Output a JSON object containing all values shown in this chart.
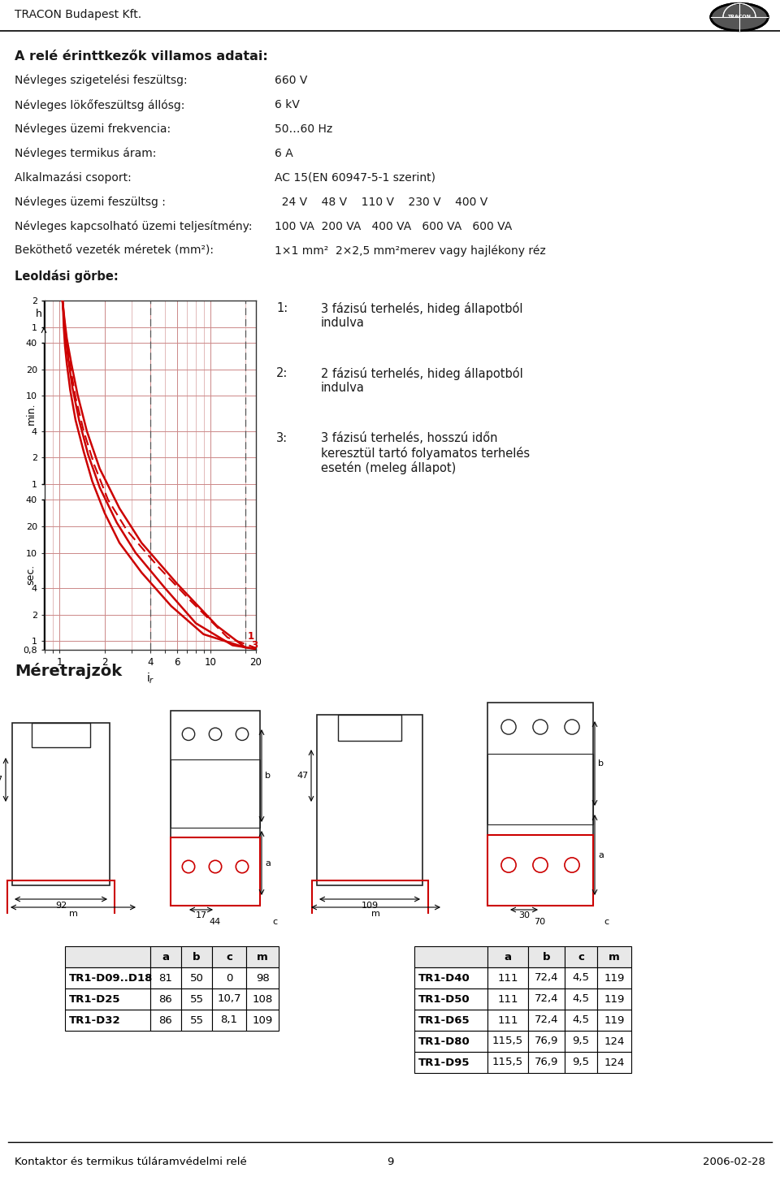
{
  "title_company": "TRACON Budapest Kft.",
  "section1_title": "A relé érinttkezők villamos adatai:",
  "params": [
    [
      "Névleges szigetelési feszültsg:",
      "660 V"
    ],
    [
      "Névleges lökőfeszültsg állósg:",
      "6 kV"
    ],
    [
      "Névleges üzemi frekvencia:",
      "50…60 Hz"
    ],
    [
      "Névleges termikus áram:",
      "6 A"
    ],
    [
      "Alkalmazási csoport:",
      "AC 15(EN 60947-5-1 szerint)"
    ],
    [
      "Névleges üzemi feszültsg :",
      "  24 V    48 V    110 V    230 V    400 V"
    ],
    [
      "Névleges kapcsolható üzemi teljesítmény:",
      "100 VA  200 VA   400 VA   600 VA   600 VA"
    ],
    [
      "Beköthető vezeték méretek (mm²):",
      "1×1 mm²  2×2,5 mm²merev vagy hajlékony réz"
    ]
  ],
  "leoldasi_label": "Leoldási görbe:",
  "curve1_label": "1:    3 fázisú terhelés, hideg állapotból\n        indulva",
  "curve2_label": "2:    2 fázisú terhelés, hideg állapotból\n        indulva",
  "curve3_label": "3:    3 fázisú terhelés, hosszú időn\n        keresztül tartó folyamatos terhelés\n        esetn (meleg állapot)",
  "meretrajzok_title": "Méretrajzok",
  "table1_headers": [
    "",
    "a",
    "b",
    "c",
    "m"
  ],
  "table1_rows": [
    [
      "TR1-D09..D18",
      "81",
      "50",
      "0",
      "98"
    ],
    [
      "TR1-D25",
      "86",
      "55",
      "10,7",
      "108"
    ],
    [
      "TR1-D32",
      "86",
      "55",
      "8,1",
      "109"
    ]
  ],
  "table2_headers": [
    "",
    "a",
    "b",
    "c",
    "m"
  ],
  "table2_rows": [
    [
      "TR1-D40",
      "111",
      "72,4",
      "4,5",
      "119"
    ],
    [
      "TR1-D50",
      "111",
      "72,4",
      "4,5",
      "119"
    ],
    [
      "TR1-D65",
      "111",
      "72,4",
      "4,5",
      "119"
    ],
    [
      "TR1-D80",
      "115,5",
      "76,9",
      "9,5",
      "124"
    ],
    [
      "TR1-D95",
      "115,5",
      "76,9",
      "9,5",
      "124"
    ]
  ],
  "footer_left": "Kontaktor és termikus túláramvédelmi relé",
  "footer_center": "9",
  "footer_right": "2006-02-28",
  "bg_color": "#ffffff",
  "text_color": "#1a1a1a",
  "red_color": "#cc0000",
  "grid_color": "#cc8888",
  "axis_line_color": "#333333"
}
